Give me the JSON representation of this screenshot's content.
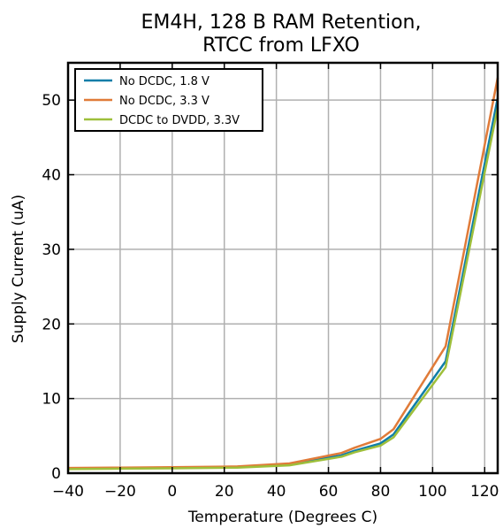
{
  "chart_data": {
    "type": "line",
    "title": [
      "EM4H, 128 B RAM Retention,",
      "RTCC from LFXO"
    ],
    "xlabel": "Temperature (Degrees C)",
    "ylabel": "Supply Current (uA)",
    "xlim": [
      -40,
      125
    ],
    "ylim": [
      0,
      55
    ],
    "xticks": [
      -40,
      -20,
      0,
      20,
      40,
      60,
      80,
      100,
      120
    ],
    "yticks": [
      0,
      10,
      20,
      30,
      40,
      50
    ],
    "xtick_labels": [
      "−40",
      "−20",
      "0",
      "20",
      "40",
      "60",
      "80",
      "100",
      "120"
    ],
    "ytick_labels": [
      "0",
      "10",
      "20",
      "30",
      "40",
      "50"
    ],
    "grid": true,
    "legend_position": "top-left",
    "series": [
      {
        "name": "No DCDC, 1.8 V",
        "color": "#0f7ea8",
        "x": [
          -40,
          -20,
          0,
          25,
          45,
          65,
          70,
          80,
          85,
          105,
          125
        ],
        "y": [
          0.6,
          0.65,
          0.7,
          0.8,
          1.15,
          2.4,
          3.0,
          4.0,
          5.2,
          15.0,
          50.3
        ]
      },
      {
        "name": "No DCDC, 3.3 V",
        "color": "#e07b39",
        "x": [
          -40,
          -20,
          0,
          25,
          45,
          65,
          70,
          80,
          85,
          105,
          125
        ],
        "y": [
          0.7,
          0.75,
          0.8,
          0.9,
          1.3,
          2.7,
          3.4,
          4.6,
          5.9,
          17.0,
          53.0
        ]
      },
      {
        "name": "DCDC to DVDD, 3.3V",
        "color": "#9ebf3b",
        "x": [
          -40,
          -20,
          0,
          25,
          45,
          65,
          70,
          80,
          85,
          105,
          125
        ],
        "y": [
          0.55,
          0.6,
          0.65,
          0.75,
          1.05,
          2.2,
          2.8,
          3.7,
          4.8,
          14.2,
          49.0
        ]
      }
    ]
  }
}
